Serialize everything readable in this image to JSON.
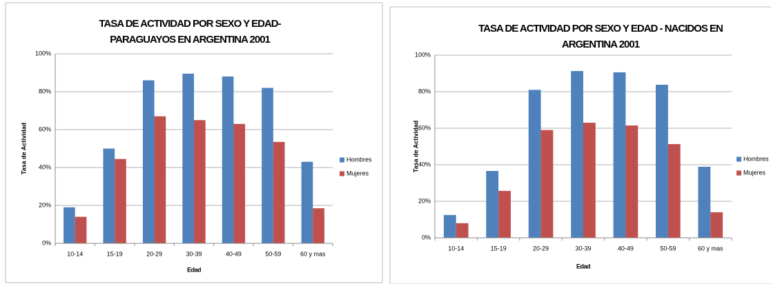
{
  "chart_data": [
    {
      "type": "bar",
      "title": "TASA DE ACTIVIDAD POR SEXO Y EDAD- PARAGUAYOS EN ARGENTINA 2001",
      "x_label": "Edad",
      "y_label": "Tasa de Actividad",
      "categories": [
        "10-14",
        "15-19",
        "20-29",
        "30-39",
        "40-49",
        "50-59",
        "60 y mas"
      ],
      "series": [
        {
          "name": "Hombres",
          "color": "#4f81bd",
          "values": [
            19,
            50,
            86,
            89.5,
            88,
            82,
            43
          ]
        },
        {
          "name": "Mujeres",
          "color": "#c0504d",
          "values": [
            14,
            44.5,
            67,
            65,
            63,
            53.5,
            18.5
          ]
        }
      ],
      "ylim": [
        0,
        100
      ],
      "yticks": [
        {
          "value": 0,
          "label": "0%"
        },
        {
          "value": 20,
          "label": "20%"
        },
        {
          "value": 40,
          "label": "40%"
        },
        {
          "value": 60,
          "label": "60%"
        },
        {
          "value": 80,
          "label": "80%"
        },
        {
          "value": 100,
          "label": "100%"
        }
      ],
      "grid": true,
      "legend": "right"
    },
    {
      "type": "bar",
      "title": "TASA DE ACTIVIDAD POR SEXO Y EDAD - NACIDOS EN ARGENTINA 2001",
      "x_label": "Edad",
      "y_label": "Tasa de Actividad",
      "categories": [
        "10-14",
        "15-19",
        "20-29",
        "30-39",
        "40-49",
        "50-59",
        "60 y mas"
      ],
      "series": [
        {
          "name": "Hombres",
          "color": "#4f81bd",
          "values": [
            12.5,
            36.6,
            81,
            91.3,
            90.6,
            83.8,
            38.9
          ]
        },
        {
          "name": "Mujeres",
          "color": "#c0504d",
          "values": [
            8,
            25.7,
            59,
            63,
            61.5,
            51.3,
            14
          ]
        }
      ],
      "ylim": [
        0,
        100
      ],
      "yticks": [
        {
          "value": 0,
          "label": "0%"
        },
        {
          "value": 20,
          "label": "20%"
        },
        {
          "value": 40,
          "label": "40%"
        },
        {
          "value": 60,
          "label": "60%"
        },
        {
          "value": 80,
          "label": "80%"
        },
        {
          "value": 100,
          "label": "100%"
        }
      ],
      "grid": true,
      "legend": "right"
    }
  ]
}
